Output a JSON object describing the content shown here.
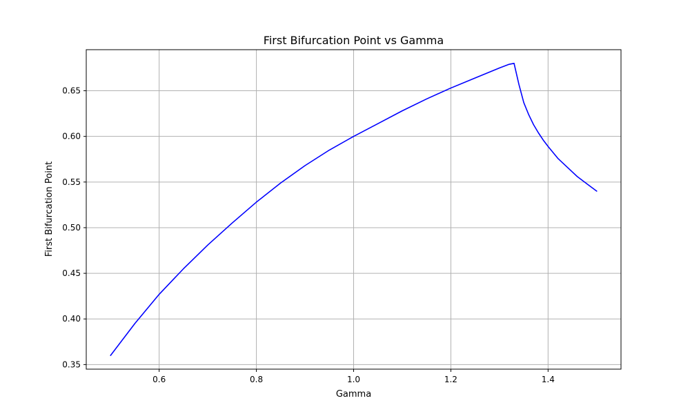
{
  "chart_data": {
    "type": "line",
    "title": "First Bifurcation Point vs Gamma",
    "xlabel": "Gamma",
    "ylabel": "First Bifurcation Point",
    "xlim": [
      0.45,
      1.55
    ],
    "ylim": [
      0.345,
      0.695
    ],
    "xticks": [
      0.6,
      0.8,
      1.0,
      1.2,
      1.4
    ],
    "xtick_labels": [
      "0.6",
      "0.8",
      "1.0",
      "1.2",
      "1.4"
    ],
    "yticks": [
      0.35,
      0.4,
      0.45,
      0.5,
      0.55,
      0.6,
      0.65
    ],
    "ytick_labels": [
      "0.35",
      "0.40",
      "0.45",
      "0.50",
      "0.55",
      "0.60",
      "0.65"
    ],
    "grid": true,
    "series": [
      {
        "color": "#0000ff",
        "x": [
          0.5,
          0.55,
          0.6,
          0.65,
          0.7,
          0.75,
          0.8,
          0.85,
          0.9,
          0.95,
          1.0,
          1.05,
          1.1,
          1.15,
          1.2,
          1.25,
          1.3,
          1.32,
          1.33,
          1.34,
          1.35,
          1.36,
          1.37,
          1.38,
          1.39,
          1.4,
          1.42,
          1.44,
          1.46,
          1.48,
          1.5
        ],
        "y": [
          0.36,
          0.395,
          0.427,
          0.455,
          0.481,
          0.505,
          0.528,
          0.549,
          0.568,
          0.585,
          0.6,
          0.614,
          0.628,
          0.641,
          0.653,
          0.664,
          0.675,
          0.679,
          0.68,
          0.657,
          0.637,
          0.624,
          0.613,
          0.604,
          0.596,
          0.589,
          0.576,
          0.566,
          0.556,
          0.548,
          0.54
        ]
      }
    ]
  }
}
